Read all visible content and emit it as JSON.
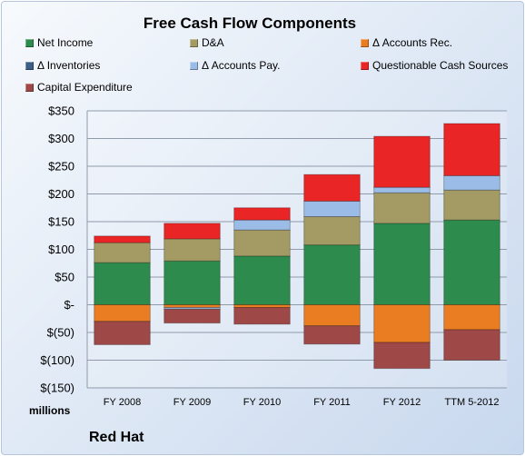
{
  "chart_data": {
    "type": "bar",
    "stacked": true,
    "title": "Free Cash Flow Components",
    "units_label": "millions",
    "footer_label": "Red Hat",
    "categories": [
      "FY 2008",
      "FY 2009",
      "FY 2010",
      "FY 2011",
      "FY 2012",
      "TTM 5-2012"
    ],
    "ylim": [
      -150,
      350
    ],
    "yticks": [
      350,
      300,
      250,
      200,
      150,
      100,
      50,
      0,
      -50,
      -100,
      -150
    ],
    "ytick_labels": [
      "$350",
      "$300",
      "$250",
      "$200",
      "$150",
      "$100",
      "$50",
      "$-",
      "$(50)",
      "$(100)",
      "$(150)"
    ],
    "grid": true,
    "legend_position": "top",
    "series": [
      {
        "name": "Net Income",
        "color": "#2e8b4e",
        "values": [
          76,
          79,
          88,
          108,
          147,
          153
        ]
      },
      {
        "name": "D&A",
        "color": "#a39a64",
        "values": [
          36,
          40,
          47,
          51,
          55,
          54
        ]
      },
      {
        "name": "Δ Accounts Rec.",
        "color": "#ea7d22",
        "values": [
          -30,
          -5,
          -5,
          -38,
          -68,
          -45
        ]
      },
      {
        "name": "Δ Inventories",
        "color": "#3b5f86",
        "values": [
          0,
          0,
          0,
          0,
          0,
          0
        ]
      },
      {
        "name": "Δ Accounts Pay.",
        "color": "#9bbce6",
        "values": [
          0,
          -3,
          18,
          28,
          10,
          26
        ]
      },
      {
        "name": "Questionable Cash Sources",
        "color": "#ea2525",
        "values": [
          12,
          28,
          22,
          48,
          92,
          94
        ]
      },
      {
        "name": "Capital Expenditure",
        "color": "#9e4848",
        "values": [
          -42,
          -25,
          -30,
          -33,
          -47,
          -55
        ]
      }
    ]
  }
}
